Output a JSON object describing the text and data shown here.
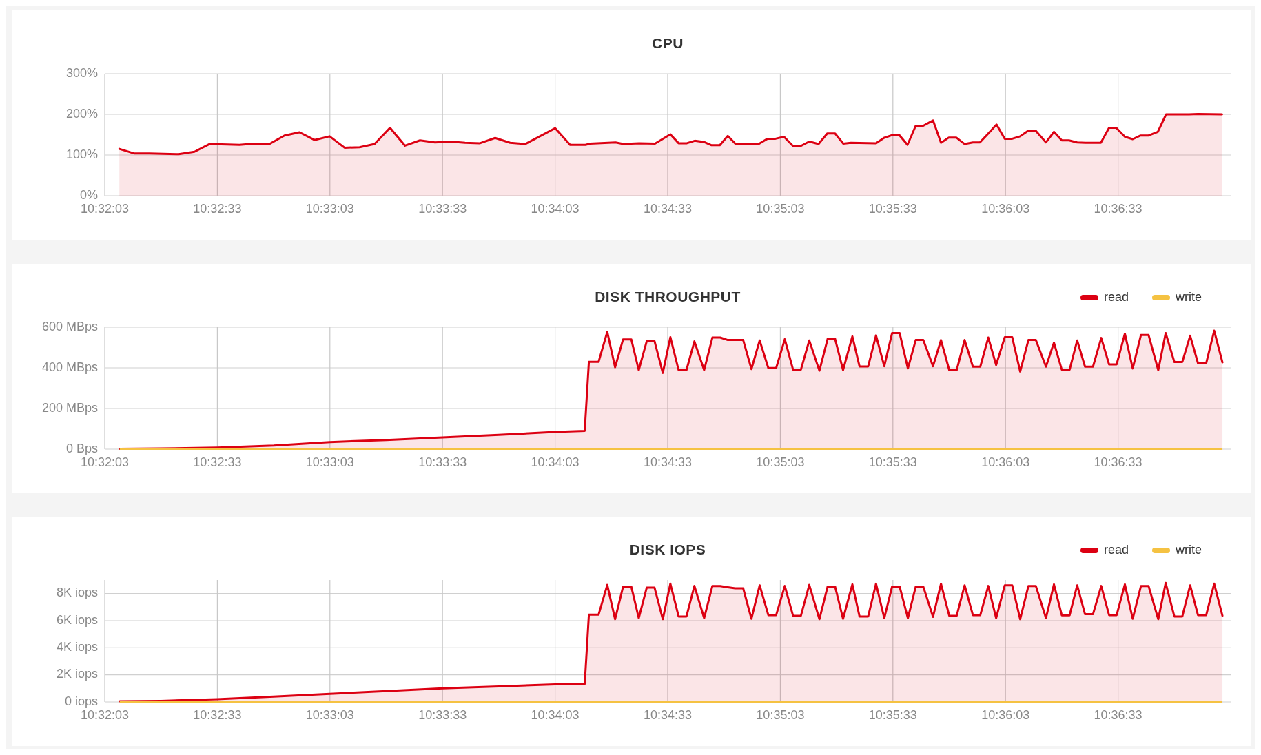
{
  "chart_data": [
    {
      "type": "area",
      "title": "CPU",
      "color": "#dc0012",
      "x": [
        10.53525,
        10.53633,
        10.53747,
        10.53964,
        10.54081,
        10.54192,
        10.54414,
        10.54522,
        10.54636,
        10.54747,
        10.54858,
        10.54969,
        10.55081,
        10.55192,
        10.55303,
        10.55414,
        10.55528,
        10.55639,
        10.5575,
        10.55861,
        10.55972,
        10.56083,
        10.56194,
        10.56306,
        10.56417,
        10.56528,
        10.5675,
        10.56861,
        10.56975,
        10.57008,
        10.57197,
        10.57256,
        10.57372,
        10.57489,
        10.57603,
        10.57664,
        10.57725,
        10.57783,
        10.57853,
        10.57908,
        10.57969,
        10.58028,
        10.58086,
        10.58261,
        10.58322,
        10.58381,
        10.58444,
        10.58511,
        10.58567,
        10.58631,
        10.587,
        10.58764,
        10.58822,
        10.58883,
        10.58939,
        10.59125,
        10.59183,
        10.59244,
        10.59297,
        10.59358,
        10.59419,
        10.59475,
        10.59547,
        10.59606,
        10.59664,
        10.59719,
        10.59781,
        10.59842,
        10.59894,
        10.59956,
        10.60017,
        10.60078,
        10.60133,
        10.60192,
        10.60253,
        10.60306,
        10.60383,
        10.60442,
        10.605,
        10.60553,
        10.60614,
        10.60675,
        10.60789,
        10.6085,
        10.60903,
        10.60967,
        10.61025,
        10.61083,
        10.61142,
        10.61211,
        10.61272,
        10.61442,
        10.61508,
        10.61686
      ],
      "values": [
        115,
        104,
        104,
        102,
        108,
        127,
        125,
        128,
        127,
        148,
        156,
        137,
        146,
        118,
        119,
        127,
        167,
        123,
        136,
        131,
        133,
        130,
        129,
        142,
        130,
        127,
        166,
        125,
        125,
        128,
        131,
        127,
        129,
        128,
        151,
        129,
        129,
        135,
        132,
        124,
        124,
        147,
        127,
        128,
        140,
        140,
        145,
        122,
        122,
        133,
        127,
        153,
        153,
        128,
        130,
        129,
        142,
        149,
        149,
        125,
        172,
        172,
        185,
        130,
        143,
        143,
        127,
        131,
        131,
        153,
        175,
        140,
        140,
        146,
        160,
        160,
        131,
        157,
        136,
        136,
        131,
        130,
        130,
        167,
        167,
        145,
        139,
        148,
        148,
        157,
        200,
        200,
        201,
        200
      ],
      "xlim": [
        10.534167,
        10.6175
      ],
      "xticks": [
        {
          "value": 10.534167,
          "label": "10:32:03"
        },
        {
          "value": 10.5425,
          "label": "10:32:33"
        },
        {
          "value": 10.550833,
          "label": "10:33:03"
        },
        {
          "value": 10.559167,
          "label": "10:33:33"
        },
        {
          "value": 10.5675,
          "label": "10:34:03"
        },
        {
          "value": 10.575833,
          "label": "10:34:33"
        },
        {
          "value": 10.584167,
          "label": "10:35:03"
        },
        {
          "value": 10.5925,
          "label": "10:35:33"
        },
        {
          "value": 10.600833,
          "label": "10:36:03"
        },
        {
          "value": 10.609167,
          "label": "10:36:33"
        }
      ],
      "ylim": [
        0,
        300
      ],
      "yticks": [
        {
          "value": 0,
          "label": "0%"
        },
        {
          "value": 100,
          "label": "100%"
        },
        {
          "value": 200,
          "label": "200%"
        },
        {
          "value": 300,
          "label": "300%"
        }
      ],
      "grid": true
    },
    {
      "type": "area",
      "title": "DISK THROUGHPUT",
      "legend": "top right",
      "x": [
        10.53528,
        10.53833,
        10.5425,
        10.54667,
        10.55083,
        10.555,
        10.55917,
        10.56333,
        10.5675,
        10.56969,
        10.57,
        10.57072,
        10.57136,
        10.57194,
        10.57253,
        10.57314,
        10.57369,
        10.57428,
        10.57486,
        10.57547,
        10.57603,
        10.57664,
        10.57722,
        10.57781,
        10.57853,
        10.57914,
        10.57972,
        10.58028,
        10.58083,
        10.58142,
        10.58203,
        10.58264,
        10.58328,
        10.58386,
        10.5845,
        10.58511,
        10.58569,
        10.58631,
        10.58706,
        10.58767,
        10.58822,
        10.58881,
        10.5895,
        10.59003,
        10.59067,
        10.59125,
        10.59186,
        10.59244,
        10.593,
        10.59361,
        10.59419,
        10.59475,
        10.59547,
        10.59606,
        10.59667,
        10.59722,
        10.59781,
        10.59842,
        10.59897,
        10.59956,
        10.60014,
        10.60078,
        10.60133,
        10.60192,
        10.60253,
        10.60308,
        10.60383,
        10.60442,
        10.605,
        10.60558,
        10.60614,
        10.60672,
        10.60731,
        10.60792,
        10.6085,
        10.60906,
        10.60967,
        10.61025,
        10.61086,
        10.61142,
        10.61214,
        10.61269,
        10.61333,
        10.61392,
        10.6145,
        10.61508,
        10.61569,
        10.61628,
        10.61689
      ],
      "series": [
        {
          "name": "read",
          "color": "#dc0012",
          "values": [
            2,
            3,
            8,
            18,
            35,
            45,
            58,
            70,
            85,
            90,
            430,
            430,
            577,
            403,
            540,
            540,
            389,
            531,
            531,
            375,
            551,
            389,
            389,
            530,
            389,
            549,
            549,
            537,
            537,
            537,
            394,
            535,
            399,
            399,
            541,
            391,
            391,
            535,
            386,
            543,
            543,
            389,
            555,
            407,
            407,
            560,
            408,
            571,
            571,
            397,
            537,
            537,
            408,
            537,
            389,
            389,
            537,
            406,
            406,
            549,
            414,
            551,
            551,
            382,
            537,
            537,
            406,
            524,
            391,
            391,
            535,
            406,
            406,
            547,
            417,
            417,
            568,
            397,
            562,
            562,
            389,
            571,
            429,
            429,
            558,
            423,
            423,
            583,
            427
          ]
        },
        {
          "name": "write",
          "type": "line",
          "color": "#f5c242",
          "values": [
            2,
            2,
            2,
            2,
            2,
            2,
            2,
            2,
            2,
            2,
            2,
            2,
            2,
            2,
            2,
            2,
            2,
            2,
            2,
            2,
            2,
            2,
            2,
            2,
            2,
            2,
            2,
            2,
            2,
            2,
            2,
            2,
            2,
            2,
            2,
            2,
            2,
            2,
            2,
            2,
            2,
            2,
            2,
            2,
            2,
            2,
            2,
            2,
            2,
            2,
            2,
            2,
            2,
            2,
            2,
            2,
            2,
            2,
            2,
            2,
            2,
            2,
            2,
            2,
            2,
            2,
            2,
            2,
            2,
            2,
            2,
            2,
            2,
            2,
            2,
            2,
            2,
            2,
            2,
            2,
            2,
            2,
            2,
            2,
            2,
            2,
            2,
            2,
            2
          ]
        }
      ],
      "xlim": [
        10.534167,
        10.6175
      ],
      "xticks": [
        {
          "value": 10.534167,
          "label": "10:32:03"
        },
        {
          "value": 10.5425,
          "label": "10:32:33"
        },
        {
          "value": 10.550833,
          "label": "10:33:03"
        },
        {
          "value": 10.559167,
          "label": "10:33:33"
        },
        {
          "value": 10.5675,
          "label": "10:34:03"
        },
        {
          "value": 10.575833,
          "label": "10:34:33"
        },
        {
          "value": 10.584167,
          "label": "10:35:03"
        },
        {
          "value": 10.5925,
          "label": "10:35:33"
        },
        {
          "value": 10.600833,
          "label": "10:36:03"
        },
        {
          "value": 10.609167,
          "label": "10:36:33"
        }
      ],
      "ylim": [
        0,
        600
      ],
      "yticks": [
        {
          "value": 0,
          "label": "0 Bps"
        },
        {
          "value": 200,
          "label": "200 MBps"
        },
        {
          "value": 400,
          "label": "400 MBps"
        },
        {
          "value": 600,
          "label": "600 MBps"
        }
      ],
      "grid": true
    },
    {
      "type": "area",
      "title": "DISK IOPS",
      "legend": "top right",
      "x": [
        10.53528,
        10.53833,
        10.5425,
        10.54667,
        10.55083,
        10.555,
        10.55917,
        10.56333,
        10.5675,
        10.56969,
        10.57,
        10.57072,
        10.57136,
        10.57194,
        10.57253,
        10.57314,
        10.57369,
        10.57428,
        10.57486,
        10.57547,
        10.57603,
        10.57664,
        10.57722,
        10.57781,
        10.57853,
        10.57914,
        10.57972,
        10.58028,
        10.58083,
        10.58142,
        10.58203,
        10.58264,
        10.58328,
        10.58386,
        10.5845,
        10.58511,
        10.58569,
        10.58631,
        10.58706,
        10.58767,
        10.58822,
        10.58881,
        10.5895,
        10.59003,
        10.59067,
        10.59125,
        10.59186,
        10.59244,
        10.593,
        10.59361,
        10.59419,
        10.59475,
        10.59547,
        10.59606,
        10.59667,
        10.59722,
        10.59781,
        10.59842,
        10.59897,
        10.59956,
        10.60014,
        10.60078,
        10.60133,
        10.60192,
        10.60253,
        10.60308,
        10.60383,
        10.60442,
        10.605,
        10.60558,
        10.60614,
        10.60672,
        10.60731,
        10.60792,
        10.6085,
        10.60906,
        10.60967,
        10.61025,
        10.61086,
        10.61142,
        10.61214,
        10.61269,
        10.61333,
        10.61392,
        10.6145,
        10.61508,
        10.61569,
        10.61628,
        10.61689
      ],
      "series": [
        {
          "name": "read",
          "color": "#dc0012",
          "values": [
            50,
            80,
            200,
            400,
            600,
            800,
            1000,
            1150,
            1300,
            1330,
            6450,
            6450,
            8640,
            6110,
            8510,
            8510,
            6190,
            8440,
            8440,
            6110,
            8730,
            6310,
            6310,
            8560,
            6190,
            8560,
            8560,
            8470,
            8390,
            8390,
            6140,
            8610,
            6410,
            6410,
            8560,
            6360,
            6360,
            8640,
            6110,
            8520,
            8520,
            6140,
            8680,
            6310,
            6310,
            8730,
            6190,
            8510,
            8510,
            6190,
            8510,
            8510,
            6280,
            8730,
            6360,
            6360,
            8610,
            6410,
            6410,
            8560,
            6190,
            8610,
            8610,
            6110,
            8560,
            8560,
            6190,
            8680,
            6400,
            6400,
            8610,
            6480,
            6480,
            8560,
            6410,
            6410,
            8680,
            6140,
            8560,
            8560,
            6110,
            8780,
            6310,
            6310,
            8610,
            6410,
            6410,
            8730,
            6360
          ]
        },
        {
          "name": "write",
          "type": "line",
          "color": "#f5c242",
          "values": [
            20,
            20,
            20,
            20,
            20,
            20,
            20,
            20,
            20,
            20,
            20,
            20,
            20,
            20,
            20,
            20,
            20,
            20,
            20,
            20,
            20,
            20,
            20,
            20,
            20,
            20,
            20,
            20,
            20,
            20,
            20,
            20,
            20,
            20,
            20,
            20,
            20,
            20,
            20,
            20,
            20,
            20,
            20,
            20,
            20,
            20,
            20,
            20,
            20,
            20,
            20,
            20,
            20,
            20,
            20,
            20,
            20,
            20,
            20,
            20,
            20,
            20,
            20,
            20,
            20,
            20,
            20,
            20,
            20,
            20,
            20,
            20,
            20,
            20,
            20,
            20,
            20,
            20,
            20,
            20,
            20,
            20,
            20,
            20,
            20,
            20,
            20,
            20,
            20
          ]
        }
      ],
      "xlim": [
        10.534167,
        10.6175
      ],
      "xticks": [
        {
          "value": 10.534167,
          "label": "10:32:03"
        },
        {
          "value": 10.5425,
          "label": "10:32:33"
        },
        {
          "value": 10.550833,
          "label": "10:33:03"
        },
        {
          "value": 10.559167,
          "label": "10:33:33"
        },
        {
          "value": 10.5675,
          "label": "10:34:03"
        },
        {
          "value": 10.575833,
          "label": "10:34:33"
        },
        {
          "value": 10.584167,
          "label": "10:35:03"
        },
        {
          "value": 10.5925,
          "label": "10:35:33"
        },
        {
          "value": 10.600833,
          "label": "10:36:03"
        },
        {
          "value": 10.609167,
          "label": "10:36:33"
        }
      ],
      "ylim": [
        0,
        9000
      ],
      "yticks": [
        {
          "value": 0,
          "label": "0 iops"
        },
        {
          "value": 2000,
          "label": "2K iops"
        },
        {
          "value": 4000,
          "label": "4K iops"
        },
        {
          "value": 6000,
          "label": "6K iops"
        },
        {
          "value": 8000,
          "label": "8K iops"
        }
      ],
      "grid": true
    }
  ]
}
